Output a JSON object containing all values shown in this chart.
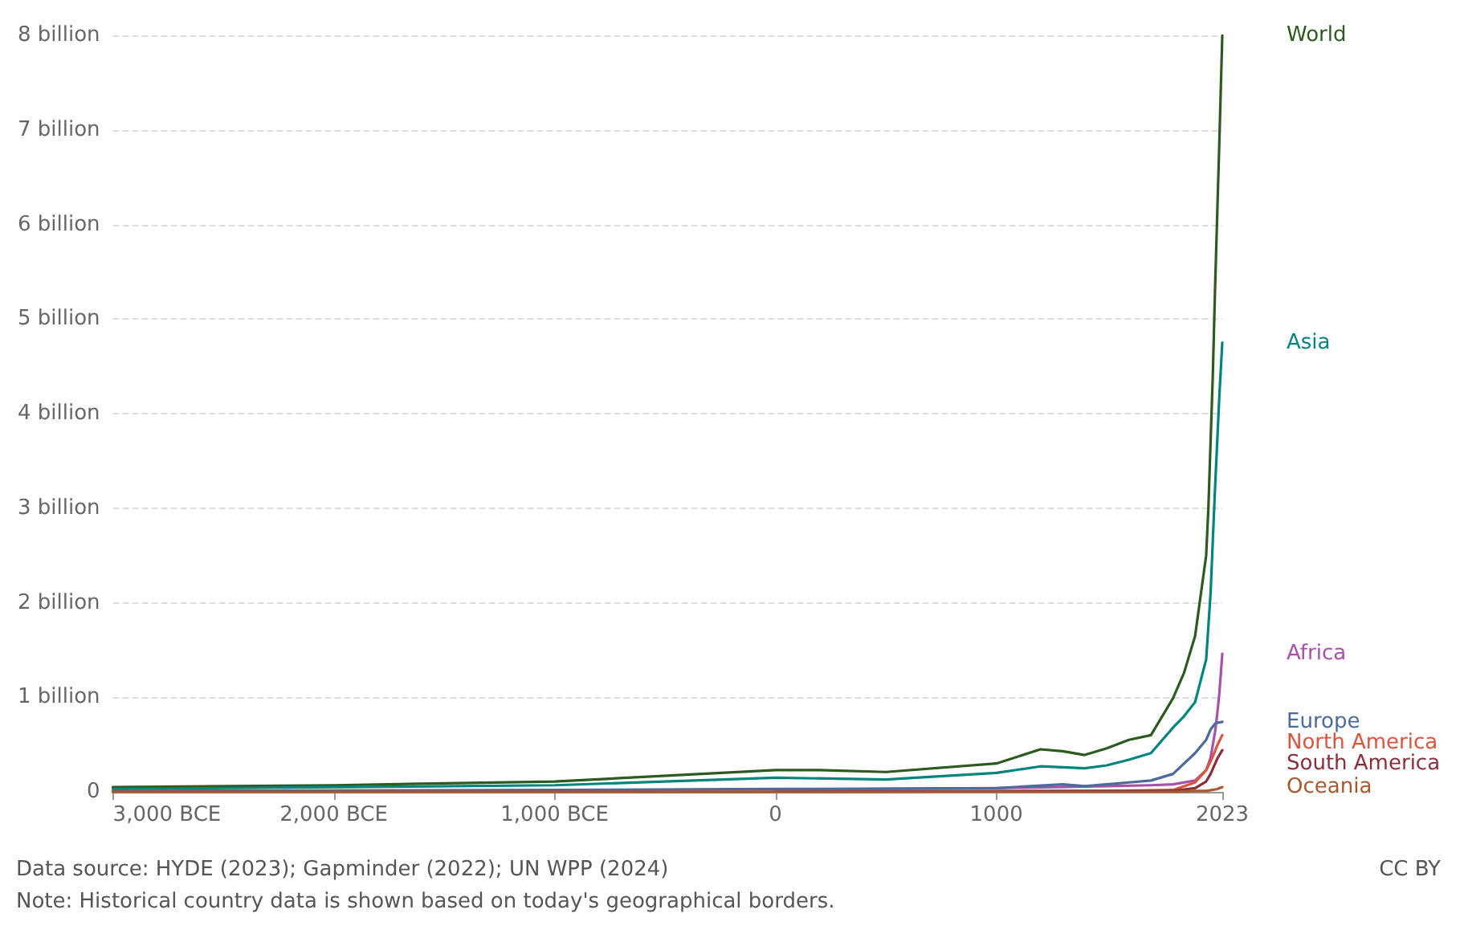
{
  "chart_data": {
    "type": "line",
    "xlim": [
      -3000,
      2023
    ],
    "ylim": [
      0,
      8
    ],
    "xticks": [
      {
        "value": -3000,
        "label": "3,000 BCE"
      },
      {
        "value": -2000,
        "label": "2,000 BCE"
      },
      {
        "value": -1000,
        "label": "1,000 BCE"
      },
      0,
      1000,
      2023
    ],
    "yticks": [
      0,
      {
        "value": 1,
        "label": "1 billion"
      },
      {
        "value": 2,
        "label": "2 billion"
      },
      {
        "value": 3,
        "label": "3 billion"
      },
      {
        "value": 4,
        "label": "4 billion"
      },
      {
        "value": 5,
        "label": "5 billion"
      },
      {
        "value": 6,
        "label": "6 billion"
      },
      {
        "value": 7,
        "label": "7 billion"
      },
      {
        "value": 8,
        "label": "8 billion"
      }
    ],
    "grid": "y",
    "marker": "none",
    "line_style": "solid",
    "series": [
      {
        "name": "World",
        "color": "#2c5a1f",
        "x": [
          -3000,
          -2000,
          -1000,
          0,
          200,
          500,
          1000,
          1200,
          1300,
          1400,
          1500,
          1600,
          1700,
          1800,
          1850,
          1900,
          1950,
          1960,
          1970,
          1980,
          1990,
          2000,
          2010,
          2023
        ],
        "values": [
          0.05,
          0.07,
          0.11,
          0.23,
          0.23,
          0.21,
          0.3,
          0.45,
          0.43,
          0.39,
          0.46,
          0.55,
          0.6,
          0.99,
          1.26,
          1.65,
          2.5,
          3.0,
          3.7,
          4.4,
          5.3,
          6.1,
          6.9,
          8.0
        ]
      },
      {
        "name": "Asia",
        "color": "#00857e",
        "x": [
          -3000,
          -2000,
          -1000,
          0,
          500,
          1000,
          1200,
          1400,
          1500,
          1600,
          1700,
          1800,
          1850,
          1900,
          1950,
          1970,
          1990,
          2000,
          2010,
          2023
        ],
        "values": [
          0.03,
          0.05,
          0.07,
          0.15,
          0.13,
          0.2,
          0.27,
          0.25,
          0.28,
          0.34,
          0.41,
          0.68,
          0.8,
          0.95,
          1.4,
          2.1,
          3.2,
          3.7,
          4.2,
          4.75
        ]
      },
      {
        "name": "Africa",
        "color": "#a752a6",
        "x": [
          0,
          1000,
          1500,
          1700,
          1800,
          1900,
          1950,
          1970,
          1990,
          2000,
          2010,
          2023
        ],
        "values": [
          0.02,
          0.04,
          0.06,
          0.07,
          0.08,
          0.12,
          0.23,
          0.36,
          0.63,
          0.82,
          1.05,
          1.46
        ]
      },
      {
        "name": "Europe",
        "color": "#4c6a9c",
        "x": [
          -3000,
          -1000,
          0,
          1000,
          1300,
          1400,
          1500,
          1600,
          1700,
          1800,
          1900,
          1950,
          1970,
          1990,
          2000,
          2023
        ],
        "values": [
          0.01,
          0.02,
          0.03,
          0.04,
          0.08,
          0.06,
          0.08,
          0.1,
          0.12,
          0.19,
          0.41,
          0.55,
          0.66,
          0.72,
          0.73,
          0.74
        ]
      },
      {
        "name": "North America",
        "color": "#d9553e",
        "x": [
          -3000,
          0,
          1500,
          1800,
          1900,
          1950,
          1970,
          1990,
          2000,
          2023
        ],
        "values": [
          0,
          0,
          0.01,
          0.02,
          0.1,
          0.23,
          0.32,
          0.43,
          0.49,
          0.6
        ]
      },
      {
        "name": "South America",
        "color": "#8b2e3a",
        "x": [
          -3000,
          0,
          1500,
          1800,
          1900,
          1950,
          1970,
          2000,
          2023
        ],
        "values": [
          0,
          0,
          0.01,
          0.01,
          0.04,
          0.11,
          0.19,
          0.35,
          0.44
        ]
      },
      {
        "name": "Oceania",
        "color": "#a8582c",
        "x": [
          -3000,
          0,
          1500,
          1800,
          1900,
          1950,
          2000,
          2023
        ],
        "values": [
          0,
          0,
          0,
          0,
          0.01,
          0.01,
          0.03,
          0.05
        ]
      }
    ],
    "annotations": [
      "Data source: HYDE (2023); Gapminder (2022); UN WPP (2024)",
      "Note: Historical country data is shown based on today's geographical borders.",
      "CC BY"
    ]
  }
}
